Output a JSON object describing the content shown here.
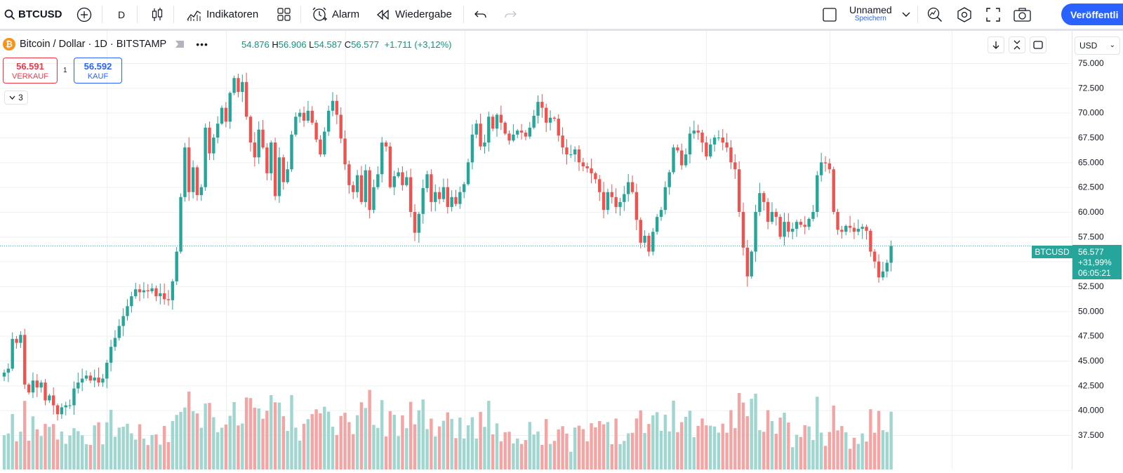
{
  "toolbar": {
    "symbol": "BTCUSD",
    "interval": "D",
    "indicators_label": "Indikatoren",
    "alert_label": "Alarm",
    "replay_label": "Wiedergabe",
    "layout_name": "Unnamed",
    "layout_save_label": "Speichern",
    "publish_label": "Veröffentli"
  },
  "legend": {
    "title": "Bitcoin / Dollar · 1D · BITSTAMP",
    "ohlc": {
      "o": "54.876",
      "h": "56.906",
      "l": "54.587",
      "c": "56.577",
      "change": "+1.711 (+3,12%)"
    },
    "indicator_count": "3"
  },
  "trade": {
    "sell_price": "56.591",
    "sell_label": "VERKAUF",
    "buy_price": "56.592",
    "buy_label": "KAUF",
    "spread": "1"
  },
  "currency": "USD",
  "price_label": {
    "symbol": "BTCUSD",
    "price": "56.577",
    "change_pct": "+31,99%",
    "countdown": "06:05:21"
  },
  "colors": {
    "up": "#26a69a",
    "down": "#ef5350",
    "up_volume": "#9fd6cf",
    "down_volume": "#f5a4a4",
    "accent": "#2962ff",
    "grid": "#eef0f3"
  },
  "chart_data": {
    "type": "candlestick",
    "symbol": "BTCUSD",
    "interval": "1D",
    "exchange": "BITSTAMP",
    "ylim": [
      35000,
      77500
    ],
    "y_ticks": [
      37500,
      40000,
      42500,
      45000,
      47500,
      50000,
      52500,
      55000,
      57500,
      60000,
      62500,
      65000,
      67500,
      70000,
      72500,
      75000
    ],
    "y_tick_labels": [
      "37.500",
      "40.000",
      "42.500",
      "45.000",
      "47.500",
      "50.000",
      "52.500",
      "55.000",
      "57.500",
      "60.000",
      "62.500",
      "65.000",
      "67.500",
      "70.000",
      "72.500",
      "75.000"
    ],
    "series": [
      {
        "name": "BTCUSD",
        "closes": [
          43800,
          44200,
          47200,
          46800,
          47600,
          42600,
          41800,
          43000,
          42300,
          42800,
          41000,
          41500,
          40500,
          39600,
          40300,
          40500,
          40500,
          42200,
          42800,
          43200,
          43500,
          43000,
          43300,
          42800,
          43200,
          44800,
          46400,
          47300,
          48500,
          49500,
          50500,
          51500,
          52200,
          51900,
          52100,
          52000,
          52300,
          51500,
          51800,
          51200,
          51100,
          53000,
          56000,
          61500,
          66500,
          62000,
          64500,
          61700,
          62500,
          68500,
          65900,
          67500,
          68900,
          70500,
          69100,
          72000,
          73500,
          72100,
          73100,
          69600,
          67000,
          65500,
          68300,
          66500,
          63900,
          67000,
          61600,
          65500,
          63000,
          64300,
          67800,
          69600,
          70000,
          69200,
          70200,
          69000,
          67300,
          65800,
          68100,
          70200,
          71200,
          69800,
          67400,
          64800,
          62700,
          62000,
          63700,
          61000,
          64200,
          60200,
          62500,
          63800,
          67000,
          66600,
          62500,
          63600,
          64000,
          62700,
          63500,
          60000,
          57900,
          59800,
          62400,
          63800,
          61000,
          62000,
          61300,
          62500,
          60500,
          61500,
          60800,
          62000,
          62800,
          65000,
          67800,
          68900,
          66600,
          67000,
          69600,
          68400,
          69800,
          69000,
          67900,
          67200,
          67800,
          68200,
          68000,
          67600,
          68500,
          69700,
          71100,
          70500,
          69000,
          69500,
          69400,
          67700,
          66500,
          65800,
          65800,
          66300,
          65000,
          64600,
          64400,
          63900,
          63300,
          62000,
          60200,
          62000,
          61500,
          60500,
          61000,
          61800,
          63000,
          62000,
          59200,
          56900,
          57600,
          56000,
          58000,
          59500,
          60200,
          62500,
          64000,
          66500,
          66200,
          64700,
          65800,
          67900,
          68200,
          68000,
          67000,
          65600,
          66800,
          67500,
          67500,
          67000,
          66500,
          65000,
          64300,
          60000,
          56400,
          53500,
          56000,
          60000,
          61900,
          61000,
          59000,
          60000,
          59500,
          57500,
          59000,
          58000,
          58300,
          59000,
          58700,
          58500,
          59300,
          60000,
          63700,
          65000,
          64900,
          64300,
          60000,
          58200,
          58000,
          58600,
          58400,
          58000,
          58300,
          58500,
          58100,
          56000,
          55000,
          53400,
          54000,
          54876,
          56577
        ]
      }
    ],
    "volume_note": "volume histogram shown at bottom, relative bar heights only"
  }
}
